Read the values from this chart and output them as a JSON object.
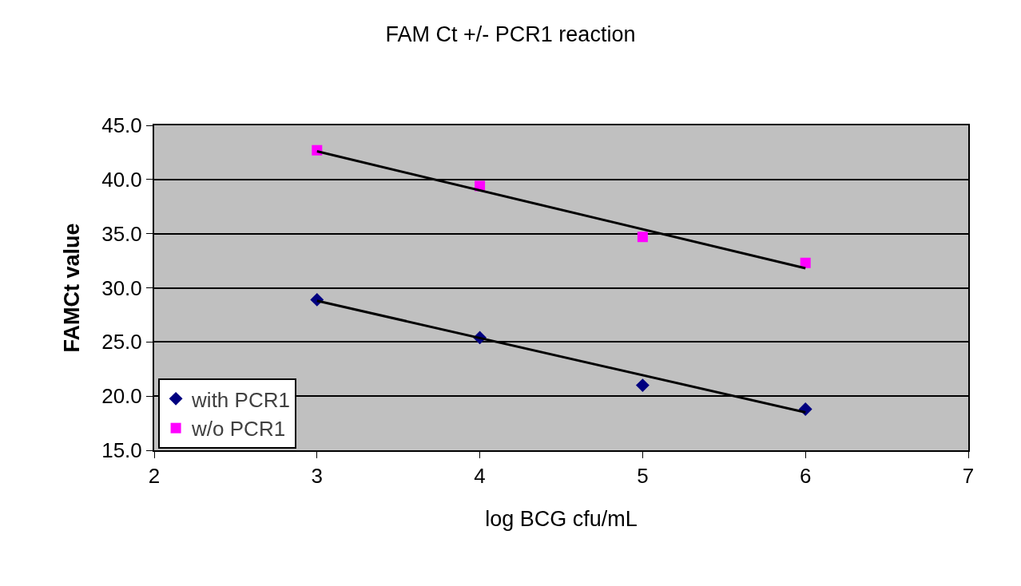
{
  "chart_data": {
    "type": "scatter",
    "title": "FAM Ct +/- PCR1 reaction",
    "xlabel": "log BCG cfu/mL",
    "ylabel": "FAMCt value",
    "xlim": [
      2,
      7
    ],
    "xticks": [
      2,
      3,
      4,
      5,
      6,
      7
    ],
    "ylim": [
      15,
      45
    ],
    "yticks": [
      {
        "value": 15,
        "label": "15.0"
      },
      {
        "value": 20,
        "label": "20.0"
      },
      {
        "value": 25,
        "label": "25.0"
      },
      {
        "value": 30,
        "label": "30.0"
      },
      {
        "value": 35,
        "label": "35.0"
      },
      {
        "value": 40,
        "label": "40.0"
      },
      {
        "value": 45,
        "label": "45.0"
      }
    ],
    "grid": "y",
    "legend": "bottom left",
    "series": [
      {
        "name": "with PCR1",
        "color": "#000080",
        "marker": "diamond",
        "x": [
          3,
          4,
          5,
          6
        ],
        "values": [
          28.9,
          25.4,
          21.0,
          18.8
        ]
      },
      {
        "name": "w/o PCR1",
        "color": "#ff00ff",
        "marker": "square",
        "x": [
          3,
          4,
          5,
          6
        ],
        "values": [
          42.7,
          39.4,
          34.7,
          32.3
        ]
      },
      {
        "type": "line",
        "color": "#000000",
        "marker": "none",
        "x": [
          3,
          6
        ],
        "values": [
          28.8,
          18.5
        ]
      },
      {
        "type": "line",
        "color": "#000000",
        "marker": "none",
        "x": [
          3,
          6
        ],
        "values": [
          42.6,
          31.8
        ]
      }
    ]
  }
}
